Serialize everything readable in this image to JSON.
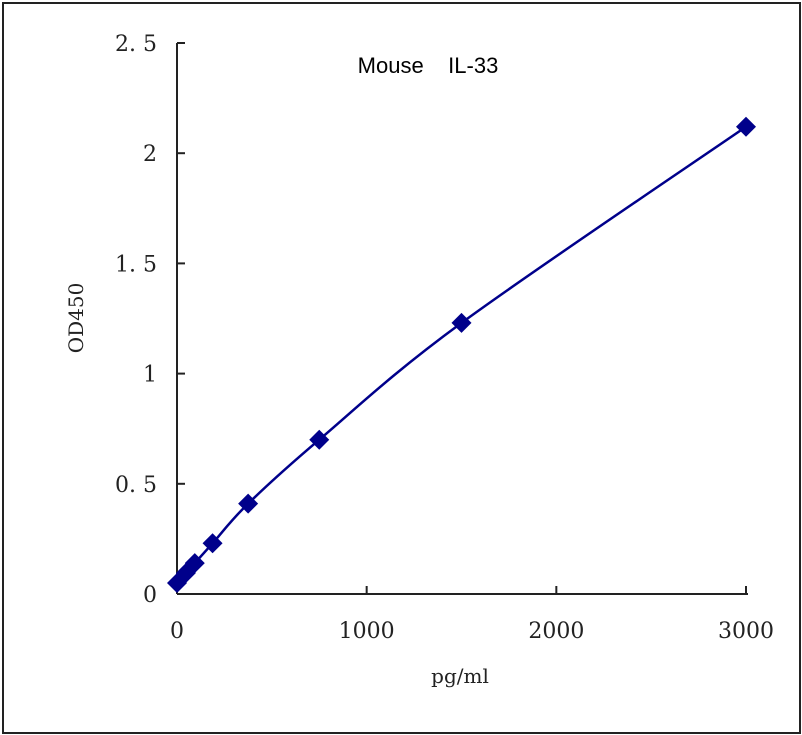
{
  "chart_data": {
    "type": "line",
    "title": "Mouse    IL-33",
    "xlabel": "pg/ml",
    "ylabel": "OD450",
    "xlim": [
      0,
      3000
    ],
    "ylim": [
      0,
      2.5
    ],
    "xticks": [
      "0",
      "1000",
      "2000",
      "3000"
    ],
    "yticks": [
      "0",
      "0. 5",
      "1",
      "1. 5",
      "2",
      "2. 5"
    ],
    "grid": false,
    "series": [
      {
        "x": [
          0,
          46.875,
          93.75,
          187.5,
          375,
          750,
          1500,
          3000
        ],
        "y": [
          0.05,
          0.095,
          0.14,
          0.23,
          0.41,
          0.7,
          1.23,
          2.12
        ],
        "color": "#00008b",
        "marker": "diamond"
      }
    ]
  }
}
